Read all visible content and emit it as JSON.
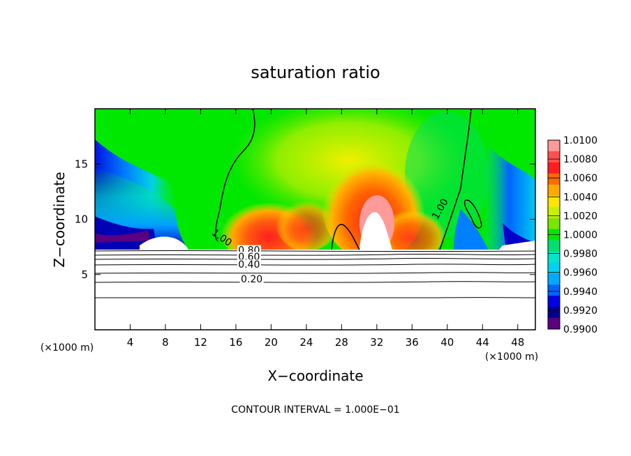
{
  "chart_data": {
    "type": "heatmap",
    "title": "saturation ratio",
    "xlabel": "X−coordinate",
    "ylabel": "Z−coordinate",
    "x_unit_label": "(×1000 m)",
    "y_unit_label": "(×1000 m)",
    "xlim": [
      0,
      50
    ],
    "ylim": [
      0,
      20
    ],
    "x_ticks": [
      4,
      8,
      12,
      16,
      20,
      24,
      28,
      32,
      36,
      40,
      44,
      48
    ],
    "y_ticks": [
      5,
      10,
      15
    ],
    "grid": false,
    "footer": "CONTOUR INTERVAL = 1.000E−01",
    "colorbar": {
      "placement": "right",
      "labels": [
        "1.0100",
        "1.0080",
        "1.0060",
        "1.0040",
        "1.0020",
        "1.0000",
        "0.9980",
        "0.9960",
        "0.9940",
        "0.9920",
        "0.9900"
      ],
      "colors": [
        "#ff9a9a",
        "#ff5050",
        "#ff1e1e",
        "#ff6a00",
        "#ffaa00",
        "#ffe600",
        "#c8f000",
        "#7ae600",
        "#00e800",
        "#00e070",
        "#00e6c8",
        "#00d2f0",
        "#00aaff",
        "#0064ff",
        "#0000e6",
        "#00008c",
        "#5a0080"
      ],
      "min": 0.99,
      "max": 1.01
    },
    "contour_labels": [
      {
        "text": "1.00",
        "x": 14.2,
        "z": 8.1
      },
      {
        "text": "1.00",
        "x": 39.5,
        "z": 10.8
      },
      {
        "text": "0.80",
        "x": 17.5,
        "z": 6.9
      },
      {
        "text": "0.60",
        "x": 17.5,
        "z": 6.3
      },
      {
        "text": "0.40",
        "x": 17.5,
        "z": 5.6
      },
      {
        "text": "0.20",
        "x": 17.8,
        "z": 4.3
      }
    ],
    "contour_levels": [
      0.2,
      0.4,
      0.6,
      0.8,
      1.0
    ]
  }
}
